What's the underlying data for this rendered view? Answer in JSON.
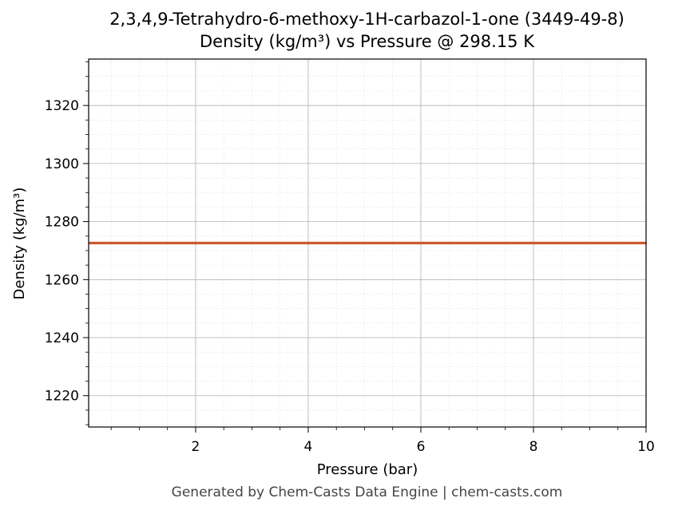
{
  "chart_data": {
    "type": "line",
    "title": "2,3,4,9-Tetrahydro-6-methoxy-1H-carbazol-1-one (3449-49-8)",
    "subtitle": "Density (kg/m³) vs Pressure @ 298.15 K",
    "xlabel": "Pressure (bar)",
    "ylabel": "Density (kg/m³)",
    "xlim": [
      0.1,
      10
    ],
    "ylim": [
      1209.2,
      1336.0
    ],
    "xticks": [
      2,
      4,
      6,
      8,
      10
    ],
    "yticks": [
      1220,
      1240,
      1260,
      1280,
      1300,
      1320
    ],
    "grid": true,
    "legend": "none",
    "series": [
      {
        "color": "#cc5a2e",
        "x": [
          0.1,
          1,
          2,
          3,
          4,
          5,
          6,
          7,
          8,
          9,
          10
        ],
        "y": [
          1272.6,
          1272.6,
          1272.6,
          1272.6,
          1272.6,
          1272.6,
          1272.6,
          1272.6,
          1272.6,
          1272.6,
          1272.6
        ]
      }
    ]
  },
  "footer": "Generated by Chem-Casts Data Engine | chem-casts.com"
}
